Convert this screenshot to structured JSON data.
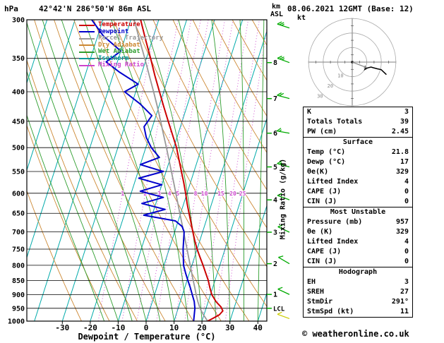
{
  "header": {
    "station": "42°42'N 286°50'W 86m ASL",
    "datetime": "08.06.2021 12GMT (Base: 12)",
    "copyright": "© weatheronline.co.uk"
  },
  "axes": {
    "pressure_unit": "hPa",
    "height_unit_km": "km",
    "height_unit_asl": "ASL",
    "xlabel": "Dewpoint / Temperature (°C)",
    "right_label": "Mixing Ratio (g/kg)",
    "x_ticks": [
      -30,
      -20,
      -10,
      0,
      10,
      20,
      30,
      40
    ],
    "pressure_ticks": [
      300,
      350,
      400,
      450,
      500,
      550,
      600,
      650,
      700,
      750,
      800,
      850,
      900,
      950,
      1000
    ],
    "km_ticks": [
      1,
      2,
      3,
      4,
      5,
      6,
      7,
      8
    ],
    "lcl_label": "LCL",
    "lcl_pressure": 950
  },
  "legend": [
    {
      "label": "Temperature",
      "color": "#cc0000"
    },
    {
      "label": "Dewpoint",
      "color": "#0000cc"
    },
    {
      "label": "Parcel Trajectory",
      "color": "#999999"
    },
    {
      "label": "Dry Adiabat",
      "color": "#cc8833"
    },
    {
      "label": "Wet Adiabat",
      "color": "#2f9e2f"
    },
    {
      "label": "Isotherm",
      "color": "#009999"
    },
    {
      "label": "Mixing Ratio",
      "color": "#cc44cc"
    }
  ],
  "chart_data": {
    "type": "line",
    "title": "Skew-T log-P sounding 42°42'N 286°50'W 86m ASL 08.06.2021 12GMT",
    "x_axis": {
      "label": "Dewpoint / Temperature (°C)",
      "range": [
        -30,
        40
      ]
    },
    "y_axis": {
      "label": "hPa",
      "scale": "log",
      "range": [
        1000,
        300
      ]
    },
    "mixing_ratio_lines": [
      1,
      2,
      3,
      4,
      5,
      8,
      10,
      15,
      20,
      25
    ],
    "series": [
      {
        "name": "Temperature",
        "color": "#cc0000",
        "points": [
          [
            1000,
            22
          ],
          [
            990,
            23.5
          ],
          [
            975,
            25.5
          ],
          [
            960,
            26.3
          ],
          [
            945,
            25.2
          ],
          [
            925,
            22.8
          ],
          [
            900,
            20.5
          ],
          [
            875,
            19
          ],
          [
            850,
            17.6
          ],
          [
            825,
            15.8
          ],
          [
            800,
            14
          ],
          [
            775,
            12
          ],
          [
            750,
            10
          ],
          [
            725,
            8.2
          ],
          [
            700,
            6.5
          ],
          [
            675,
            4.8
          ],
          [
            650,
            3
          ],
          [
            625,
            1.2
          ],
          [
            600,
            -0.5
          ],
          [
            575,
            -2.4
          ],
          [
            550,
            -4.5
          ],
          [
            525,
            -6.7
          ],
          [
            500,
            -9
          ],
          [
            475,
            -11.9
          ],
          [
            450,
            -15
          ],
          [
            425,
            -18.2
          ],
          [
            400,
            -21.5
          ],
          [
            375,
            -25
          ],
          [
            350,
            -28.5
          ],
          [
            325,
            -32.4
          ],
          [
            300,
            -36.5
          ]
        ]
      },
      {
        "name": "Dewpoint",
        "color": "#0000cc",
        "points": [
          [
            1000,
            17
          ],
          [
            975,
            16.5
          ],
          [
            950,
            16
          ],
          [
            925,
            15
          ],
          [
            900,
            13.5
          ],
          [
            875,
            12
          ],
          [
            850,
            10.3
          ],
          [
            825,
            8.6
          ],
          [
            800,
            7
          ],
          [
            775,
            6
          ],
          [
            750,
            5
          ],
          [
            725,
            4.2
          ],
          [
            700,
            3.4
          ],
          [
            685,
            2
          ],
          [
            670,
            -1
          ],
          [
            655,
            -13
          ],
          [
            640,
            -6
          ],
          [
            625,
            -15
          ],
          [
            610,
            -8
          ],
          [
            595,
            -17
          ],
          [
            580,
            -10
          ],
          [
            565,
            -19
          ],
          [
            550,
            -11
          ],
          [
            535,
            -20
          ],
          [
            520,
            -14
          ],
          [
            500,
            -18
          ],
          [
            480,
            -21
          ],
          [
            460,
            -23
          ],
          [
            440,
            -21.5
          ],
          [
            420,
            -27
          ],
          [
            400,
            -34
          ],
          [
            388,
            -30
          ],
          [
            370,
            -38
          ],
          [
            355,
            -44
          ],
          [
            340,
            -40
          ],
          [
            320,
            -48
          ],
          [
            300,
            -54
          ]
        ]
      },
      {
        "name": "Parcel Trajectory",
        "color": "#999999",
        "points": [
          [
            1000,
            22
          ],
          [
            975,
            19.8
          ],
          [
            950,
            17.8
          ],
          [
            925,
            16.3
          ],
          [
            900,
            14.9
          ],
          [
            875,
            13.6
          ],
          [
            850,
            12.2
          ],
          [
            825,
            10.8
          ],
          [
            800,
            9.4
          ],
          [
            775,
            7.9
          ],
          [
            750,
            6.4
          ],
          [
            725,
            4.8
          ],
          [
            700,
            3.2
          ],
          [
            675,
            1.5
          ],
          [
            650,
            -0.3
          ],
          [
            625,
            -2.1
          ],
          [
            600,
            -4
          ],
          [
            575,
            -6
          ],
          [
            550,
            -8.1
          ],
          [
            525,
            -10.3
          ],
          [
            500,
            -12.6
          ],
          [
            475,
            -15.1
          ],
          [
            450,
            -17.7
          ],
          [
            425,
            -20.5
          ],
          [
            400,
            -23.6
          ],
          [
            375,
            -27
          ],
          [
            350,
            -30.6
          ],
          [
            325,
            -34.6
          ],
          [
            300,
            -38.8
          ]
        ]
      }
    ]
  },
  "hodograph": {
    "unit_label": "kt",
    "ring_labels": [
      "10",
      "20",
      "30"
    ],
    "trace_uv_kt": [
      [
        9.4,
        -3.4
      ],
      [
        9.1,
        -4.2
      ],
      [
        8.7,
        -5.0
      ],
      [
        10.6,
        -4.0
      ],
      [
        12.9,
        -3.4
      ],
      [
        14.5,
        -3.9
      ],
      [
        17.3,
        -4.6
      ],
      [
        19.9,
        -5.2
      ],
      [
        23.5,
        -8.6
      ]
    ],
    "storm_motion": {
      "dir": 291,
      "spd": 11
    }
  },
  "wind_barbs": [
    {
      "pressure": 310,
      "dir": 288,
      "spd": 25,
      "color": "#00aa00"
    },
    {
      "pressure": 356,
      "dir": 290,
      "spd": 25,
      "color": "#00aa00"
    },
    {
      "pressure": 411,
      "dir": 285,
      "spd": 20,
      "color": "#00aa00"
    },
    {
      "pressure": 472,
      "dir": 280,
      "spd": 15,
      "color": "#00aa00"
    },
    {
      "pressure": 540,
      "dir": 285,
      "spd": 15,
      "color": "#00aa00"
    },
    {
      "pressure": 616,
      "dir": 290,
      "spd": 10,
      "color": "#00aa00"
    },
    {
      "pressure": 701,
      "dir": 295,
      "spd": 10,
      "color": "#00aa00"
    },
    {
      "pressure": 795,
      "dir": 300,
      "spd": 10,
      "color": "#00aa00"
    },
    {
      "pressure": 899,
      "dir": 295,
      "spd": 10,
      "color": "#00aa00"
    },
    {
      "pressure": 990,
      "dir": 290,
      "spd": 10,
      "color": "#cccc00"
    }
  ],
  "panel": {
    "sections": [
      {
        "id": "indices",
        "rows": [
          [
            "K",
            "3"
          ],
          [
            "Totals Totals",
            "39"
          ],
          [
            "PW (cm)",
            "2.45"
          ]
        ]
      },
      {
        "id": "surface",
        "header": "Surface",
        "rows": [
          [
            "Temp (°C)",
            "21.8"
          ],
          [
            "Dewp (°C)",
            "17"
          ],
          [
            "θe(K)",
            "329"
          ],
          [
            "Lifted Index",
            "4"
          ],
          [
            "CAPE (J)",
            "0"
          ],
          [
            "CIN (J)",
            "0"
          ]
        ]
      },
      {
        "id": "most-unstable",
        "header": "Most Unstable",
        "rows": [
          [
            "Pressure (mb)",
            "957"
          ],
          [
            "θe (K)",
            "329"
          ],
          [
            "Lifted Index",
            "4"
          ],
          [
            "CAPE (J)",
            "0"
          ],
          [
            "CIN (J)",
            "0"
          ]
        ]
      },
      {
        "id": "hodograph",
        "header": "Hodograph",
        "rows": [
          [
            "EH",
            "3"
          ],
          [
            "SREH",
            "27"
          ],
          [
            "StmDir",
            "291°"
          ],
          [
            "StmSpd (kt)",
            "11"
          ]
        ]
      }
    ]
  }
}
